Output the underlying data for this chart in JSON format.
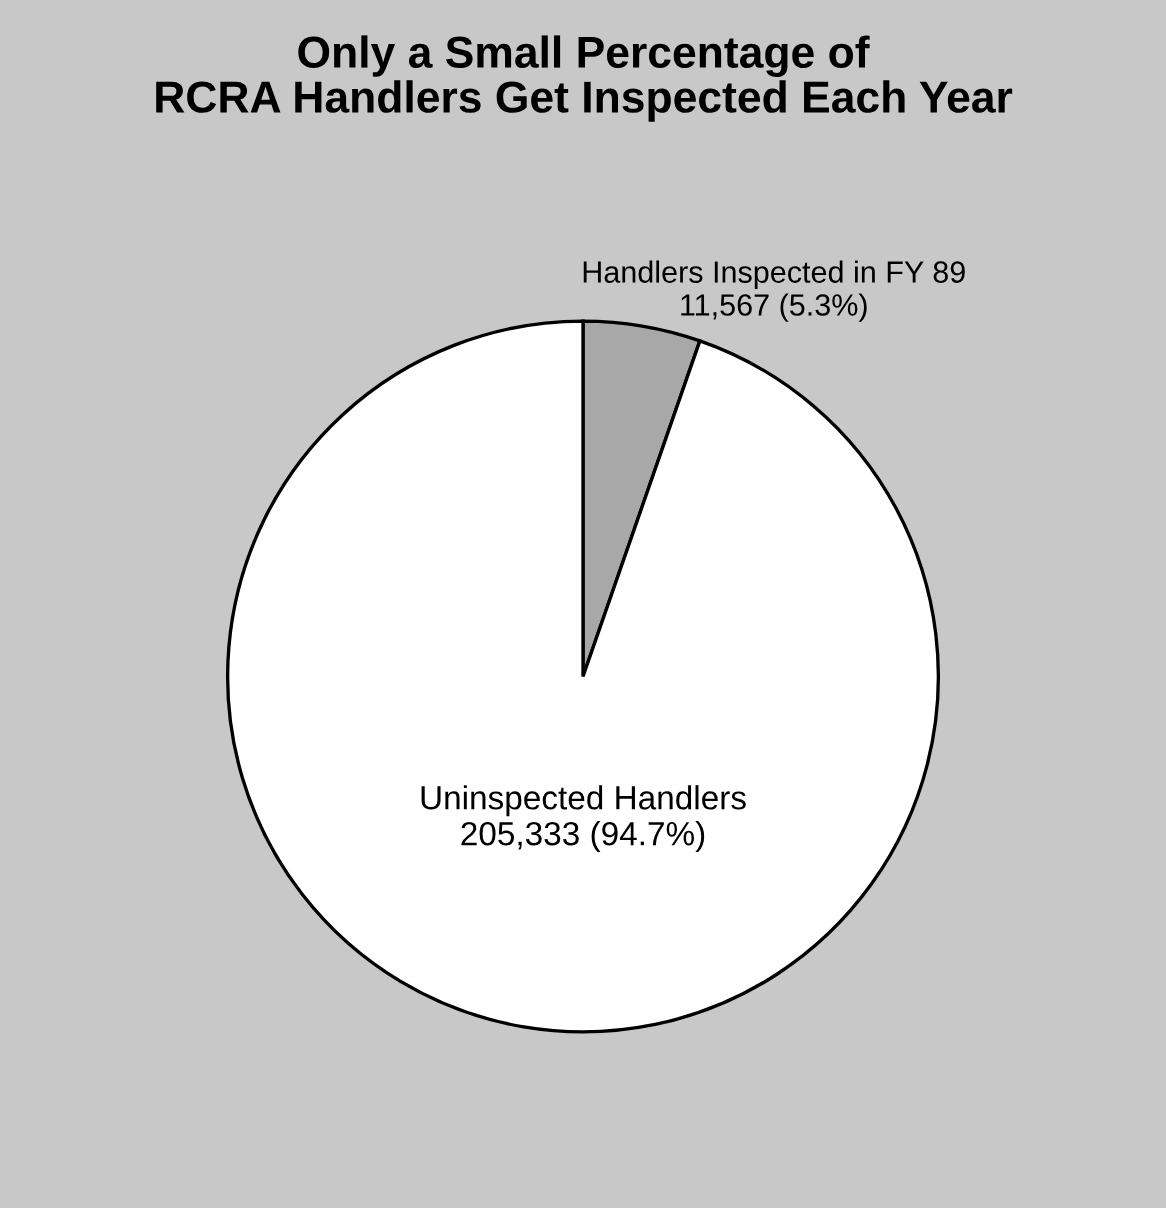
{
  "chart_data": {
    "type": "pie",
    "title": "Only a Small Percentage of\nRCRA Handlers Get Inspected Each Year",
    "categories": [
      "Handlers Inspected in FY 89",
      "Uninspected Handlers"
    ],
    "values": [
      11567,
      205333
    ],
    "colors": [
      "#a8a8a8",
      "#ffffff"
    ],
    "value_labels": [
      "11,567 (5.3%)",
      "205,333 (94.7%)"
    ]
  }
}
